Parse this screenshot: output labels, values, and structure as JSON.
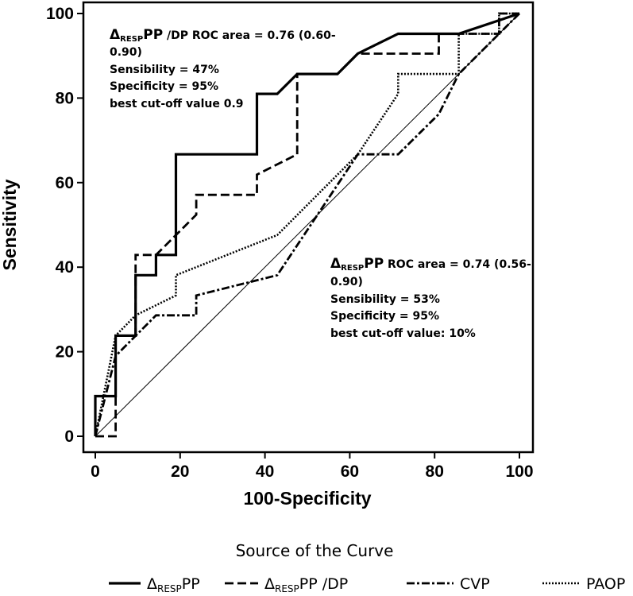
{
  "chart_data": {
    "type": "line",
    "xlabel": "100-Specificity",
    "ylabel": "Sensitivity",
    "xlim": [
      0,
      100
    ],
    "ylim": [
      0,
      100
    ],
    "xticks": [
      "0",
      "20",
      "40",
      "60",
      "80",
      "100"
    ],
    "yticks": [
      "0",
      "20",
      "40",
      "60",
      "80",
      "100"
    ],
    "grid": false,
    "reference_line": [
      [
        0,
        0
      ],
      [
        100,
        100
      ]
    ],
    "series": [
      {
        "name_main": "Δ",
        "name_sub": "RESP",
        "name_tail": "PP",
        "style": "solid",
        "points": [
          [
            0,
            0
          ],
          [
            0,
            9.5
          ],
          [
            4.8,
            9.5
          ],
          [
            4.8,
            23.8
          ],
          [
            9.5,
            23.8
          ],
          [
            9.5,
            38.1
          ],
          [
            14.3,
            38.1
          ],
          [
            14.3,
            42.9
          ],
          [
            19,
            42.9
          ],
          [
            19,
            66.7
          ],
          [
            38.1,
            66.7
          ],
          [
            38.1,
            81
          ],
          [
            42.9,
            81
          ],
          [
            47.6,
            85.7
          ],
          [
            57.1,
            85.7
          ],
          [
            61.9,
            90.5
          ],
          [
            71.4,
            95.2
          ],
          [
            85.7,
            95.2
          ],
          [
            100,
            100
          ]
        ]
      },
      {
        "name_main": "Δ",
        "name_sub": "RESP",
        "name_tail": "PP /DP",
        "style": "dashed",
        "points": [
          [
            0,
            0
          ],
          [
            4.8,
            0
          ],
          [
            4.8,
            23.8
          ],
          [
            9.5,
            23.8
          ],
          [
            9.5,
            42.9
          ],
          [
            14.3,
            42.9
          ],
          [
            19,
            47.6
          ],
          [
            23.8,
            52.4
          ],
          [
            23.8,
            57.1
          ],
          [
            38.1,
            57.1
          ],
          [
            38.1,
            61.9
          ],
          [
            47.6,
            66.7
          ],
          [
            47.6,
            85.7
          ],
          [
            57.1,
            85.7
          ],
          [
            61.9,
            90.5
          ],
          [
            81,
            90.5
          ],
          [
            81,
            95.2
          ],
          [
            95.2,
            95.2
          ],
          [
            95.2,
            100
          ],
          [
            100,
            100
          ]
        ]
      },
      {
        "name_main": "CVP",
        "name_sub": "",
        "name_tail": "",
        "style": "dashdot",
        "points": [
          [
            0,
            0
          ],
          [
            4.8,
            19
          ],
          [
            14.3,
            28.6
          ],
          [
            23.8,
            28.6
          ],
          [
            23.8,
            33.3
          ],
          [
            42.9,
            38.1
          ],
          [
            52.4,
            52.4
          ],
          [
            61.9,
            66.7
          ],
          [
            71.4,
            66.7
          ],
          [
            81,
            76.2
          ],
          [
            85.7,
            85.7
          ],
          [
            100,
            100
          ]
        ]
      },
      {
        "name_main": "PAOP",
        "name_sub": "",
        "name_tail": "",
        "style": "dotted",
        "points": [
          [
            0,
            0
          ],
          [
            4.8,
            23.8
          ],
          [
            9.5,
            28.6
          ],
          [
            19,
            33.3
          ],
          [
            19,
            38.1
          ],
          [
            42.9,
            47.6
          ],
          [
            61.9,
            66.7
          ],
          [
            71.4,
            81
          ],
          [
            71.4,
            85.7
          ],
          [
            85.7,
            85.7
          ],
          [
            85.7,
            95.2
          ],
          [
            95.2,
            95.2
          ],
          [
            95.2,
            100
          ],
          [
            100,
            100
          ]
        ]
      }
    ],
    "annotations": {
      "upper": {
        "head_main": "Δ",
        "head_sub": "RESP",
        "head_tail": "PP",
        "line1_rest": " /DP ROC area = 0.76 (0.60-",
        "line2": "0.90)",
        "line3": "Sensibility = 47%",
        "line4": "Specificity = 95%",
        "line5": "best cut-off value 0.9"
      },
      "lower": {
        "head_main": "Δ",
        "head_sub": "RESP",
        "head_tail": "PP",
        "line1_rest": " ROC area = 0.74 (0.56-",
        "line2": "0.90)",
        "line3": "Sensibility = 53%",
        "line4": "Specificity = 95%",
        "line5": "best cut-off value: 10%"
      }
    },
    "legend": {
      "title": "Source of the Curve",
      "placement": "bottom"
    }
  }
}
